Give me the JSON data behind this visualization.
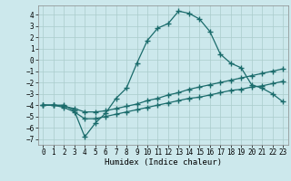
{
  "xlabel": "Humidex (Indice chaleur)",
  "background_color": "#cce8ec",
  "grid_color": "#aacccc",
  "line_color": "#1a6b6b",
  "xlim": [
    -0.5,
    23.5
  ],
  "ylim": [
    -7.5,
    4.8
  ],
  "xticks": [
    0,
    1,
    2,
    3,
    4,
    5,
    6,
    7,
    8,
    9,
    10,
    11,
    12,
    13,
    14,
    15,
    16,
    17,
    18,
    19,
    20,
    21,
    22,
    23
  ],
  "yticks": [
    -7,
    -6,
    -5,
    -4,
    -3,
    -2,
    -1,
    0,
    1,
    2,
    3,
    4
  ],
  "line1_x": [
    0,
    1,
    2,
    3,
    4,
    5,
    6,
    7,
    8,
    9,
    10,
    11,
    12,
    13,
    14,
    15,
    16,
    17,
    18,
    19,
    20,
    21,
    22,
    23
  ],
  "line1_y": [
    -4.0,
    -4.0,
    -4.0,
    -4.5,
    -6.8,
    -5.6,
    -4.7,
    -3.4,
    -2.5,
    -0.3,
    1.7,
    2.8,
    3.2,
    4.3,
    4.1,
    3.6,
    2.5,
    0.5,
    -0.3,
    -0.7,
    -2.2,
    -2.5,
    -3.0,
    -3.7
  ],
  "line2_x": [
    0,
    1,
    2,
    3,
    4,
    5,
    6,
    7,
    8,
    9,
    10,
    11,
    12,
    13,
    14,
    15,
    16,
    17,
    18,
    19,
    20,
    21,
    22,
    23
  ],
  "line2_y": [
    -4.0,
    -4.0,
    -4.1,
    -4.3,
    -4.6,
    -4.6,
    -4.5,
    -4.3,
    -4.1,
    -3.9,
    -3.6,
    -3.4,
    -3.1,
    -2.9,
    -2.6,
    -2.4,
    -2.2,
    -2.0,
    -1.8,
    -1.6,
    -1.4,
    -1.2,
    -1.0,
    -0.8
  ],
  "line3_x": [
    0,
    1,
    2,
    3,
    4,
    5,
    6,
    7,
    8,
    9,
    10,
    11,
    12,
    13,
    14,
    15,
    16,
    17,
    18,
    19,
    20,
    21,
    22,
    23
  ],
  "line3_y": [
    -4.0,
    -4.0,
    -4.2,
    -4.6,
    -5.2,
    -5.2,
    -5.0,
    -4.8,
    -4.6,
    -4.4,
    -4.2,
    -4.0,
    -3.8,
    -3.6,
    -3.4,
    -3.3,
    -3.1,
    -2.9,
    -2.7,
    -2.6,
    -2.4,
    -2.3,
    -2.1,
    -1.9
  ]
}
